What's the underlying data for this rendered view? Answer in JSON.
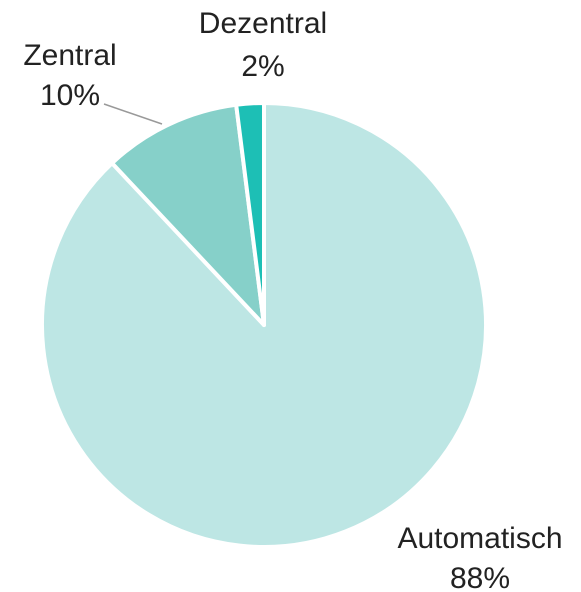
{
  "chart_data": {
    "type": "pie",
    "categories": [
      "Automatisch",
      "Zentral",
      "Dezentral"
    ],
    "values": [
      88,
      10,
      2
    ],
    "value_labels": [
      "88%",
      "10%",
      "2%"
    ],
    "colors": [
      "#bde6e4",
      "#86d0c9",
      "#1dbfb5"
    ]
  }
}
